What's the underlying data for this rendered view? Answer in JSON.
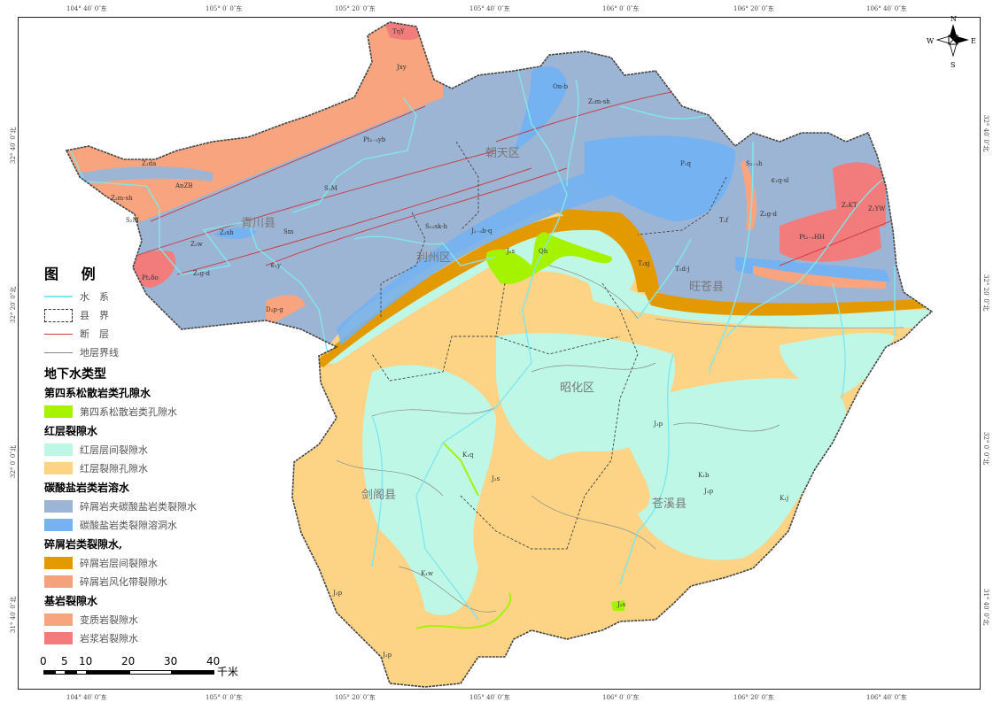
{
  "coords": {
    "lon": [
      "104° 40′ 0″东",
      "105° 0′ 0″东",
      "105° 20′ 0″东",
      "105° 40′ 0″东",
      "106° 0′ 0″东",
      "106° 20′ 0″东",
      "106° 40′ 0″东"
    ],
    "lat": [
      "32° 40′ 0″北",
      "32° 20′ 0″北",
      "32° 0′ 0″北",
      "31° 40′ 0″北"
    ]
  },
  "compass": {
    "n": "N",
    "s": "S",
    "e": "E",
    "w": "W"
  },
  "counties": [
    "青川县",
    "朝天区",
    "利州区",
    "旺苍县",
    "昭化区",
    "剑阁县",
    "苍溪县"
  ],
  "units": [
    "Jxy",
    "TηY",
    "Pt₂₋₃yb",
    "Z₁da",
    "AnZB",
    "Z₂m-sh",
    "S₂M",
    "Pt₂δo",
    "Z₂g-d",
    "Z₂sh",
    "Sm",
    "Z₂w",
    "∈₁y",
    "D₂p-g",
    "S₁M",
    "S₁₂sk-h",
    "J₂₋₃b-q",
    "J₂s",
    "Qh",
    "T₃xj",
    "T₁d-j",
    "T₁f",
    "P₁q",
    "S₂₋₃h",
    "∈₁q-sl",
    "Z₂KT",
    "Z₁YW",
    "Pt₂₋₃HH",
    "On-b",
    "Z₂m-sh",
    "J₃p",
    "K₁w",
    "K₁q",
    "K₁b",
    "K₁j",
    "J₂s",
    "J₃p",
    "J₃p"
  ],
  "legend": {
    "title": "图 例",
    "lines": [
      {
        "label": "水　系",
        "color": "#7fe7ef"
      },
      {
        "label": "县　界",
        "color": "#333333"
      },
      {
        "label": "断　层",
        "color": "#c8404a"
      },
      {
        "label": "地层界线",
        "color": "#888888"
      }
    ],
    "section_title": "地下水类型",
    "groups": [
      {
        "title": "第四系松散岩类孔隙水",
        "items": [
          {
            "label": "第四系松散岩类孔隙水",
            "color": "#a6f300"
          }
        ]
      },
      {
        "title": "红层裂隙水",
        "items": [
          {
            "label": "红层层间裂隙水",
            "color": "#bff7e6"
          },
          {
            "label": "红层裂隙孔隙水",
            "color": "#fdd386"
          }
        ]
      },
      {
        "title": "碳酸盐岩类岩溶水",
        "items": [
          {
            "label": "碎屑岩夹碳酸盐岩类裂隙水",
            "color": "#9db5d4"
          },
          {
            "label": "碳酸盐岩类裂隙溶洞水",
            "color": "#74b2f2"
          }
        ]
      },
      {
        "title": "碎屑岩类裂隙水,",
        "items": [
          {
            "label": "碎屑岩层间裂隙水",
            "color": "#e39a00"
          },
          {
            "label": "碎屑岩风化带裂隙水",
            "color": "#f2a27c"
          }
        ]
      },
      {
        "title": "基岩裂隙水",
        "items": [
          {
            "label": "变质岩裂隙水",
            "color": "#f8a47e"
          },
          {
            "label": "岩浆岩裂隙水",
            "color": "#f27b7b"
          }
        ]
      }
    ]
  },
  "scale": {
    "ticks": [
      "0",
      "5",
      "10",
      "20",
      "30",
      "40"
    ],
    "unit": "千米"
  }
}
